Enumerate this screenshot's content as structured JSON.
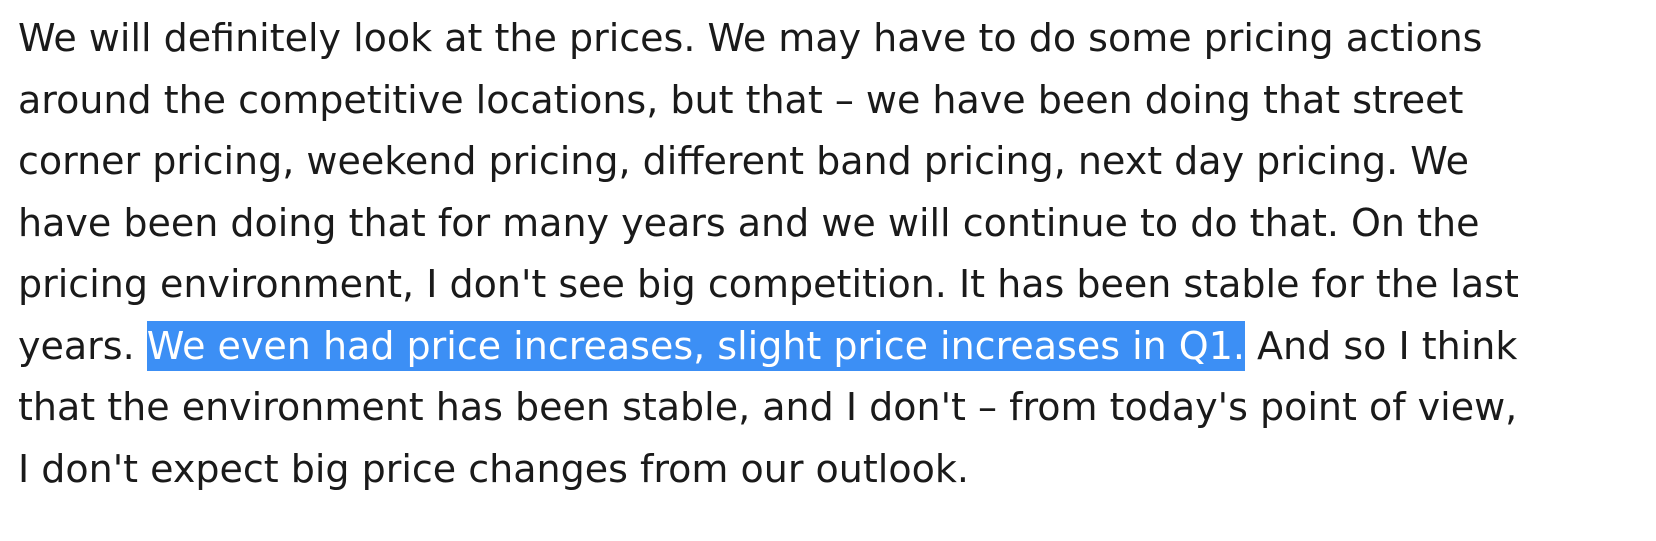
{
  "document": {
    "lines": [
      "We will definitely look at the prices. We may have to do some pricing actions",
      "around the competitive locations, but that – we have been doing that street",
      "corner pricing, weekend pricing, different band pricing, next day pricing. We",
      "have been doing that for many years and we will continue to do that. On the",
      "pricing environment, I don't see big competition. It has been stable for the last"
    ],
    "line6": {
      "before": "years. ",
      "selected": "We even had price increases, slight price increases in Q1.",
      "after": " And so I think"
    },
    "lines_after": [
      "that the environment has been stable, and I don't – from today's point of view,",
      "I don't expect big price changes from our outlook."
    ]
  },
  "colors": {
    "selection_background": "#3c8ff5",
    "selection_text": "#ffffff",
    "text": "#1a1a1a",
    "background": "#ffffff"
  }
}
